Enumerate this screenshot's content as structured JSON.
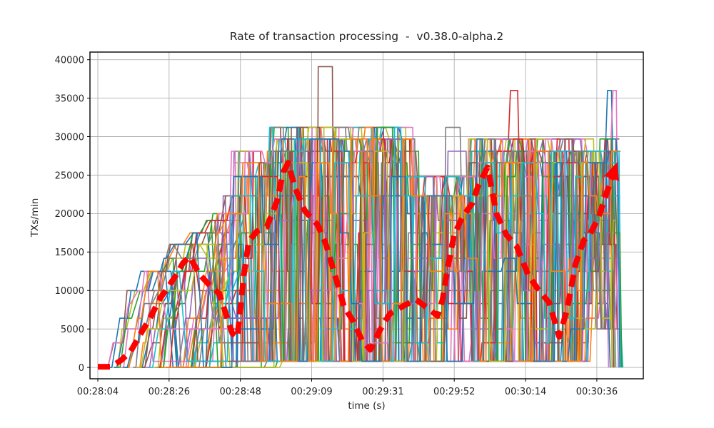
{
  "title": "Rate of transaction processing  -  v0.38.0-alpha.2",
  "chart_data": {
    "type": "line",
    "title": "Rate of transaction processing  -  v0.38.0-alpha.2",
    "xlabel": "time (s)",
    "ylabel": "TXs/min",
    "grid": true,
    "legend": "none",
    "x_axis": {
      "tick_labels": [
        "00:28:04",
        "00:28:26",
        "00:28:48",
        "00:29:09",
        "00:29:31",
        "00:29:52",
        "00:30:14",
        "00:30:36"
      ],
      "tick_seconds": [
        0,
        21.714,
        43.429,
        65.143,
        86.857,
        108.571,
        130.286,
        152
      ],
      "range_seconds": [
        -2.39,
        166.15
      ]
    },
    "y_axis": {
      "tick_labels": [
        "0",
        "5000",
        "10000",
        "15000",
        "20000",
        "25000",
        "30000",
        "35000",
        "40000"
      ],
      "tick_values": [
        0,
        5000,
        10000,
        15000,
        20000,
        25000,
        30000,
        35000,
        40000
      ],
      "range": [
        -1470,
        40990
      ]
    },
    "style": {
      "grid_color": "#b0b0b0",
      "spine_color": "#000000",
      "text_color": "#262626",
      "average_color": "#ff0000"
    },
    "average_series": {
      "name": "trend-arrow",
      "color": "#ff0000",
      "style": "thick-dashed-with-arrowhead",
      "points_t_v": [
        [
          0,
          100
        ],
        [
          4,
          100
        ],
        [
          7,
          900
        ],
        [
          10,
          2100
        ],
        [
          13.5,
          4700
        ],
        [
          16,
          6500
        ],
        [
          19,
          9000
        ],
        [
          21.5,
          10500
        ],
        [
          24,
          12100
        ],
        [
          26,
          13600
        ],
        [
          28,
          14400
        ],
        [
          31,
          12100
        ],
        [
          34,
          10700
        ],
        [
          37,
          9600
        ],
        [
          39,
          7000
        ],
        [
          41,
          4400
        ],
        [
          42.5,
          3900
        ],
        [
          44.5,
          12000
        ],
        [
          46,
          16400
        ],
        [
          48.5,
          17700
        ],
        [
          51.5,
          18300
        ],
        [
          54.5,
          21500
        ],
        [
          56.5,
          25400
        ],
        [
          58,
          26600
        ],
        [
          60,
          23400
        ],
        [
          63,
          20400
        ],
        [
          67,
          18500
        ],
        [
          69.5,
          16000
        ],
        [
          72.5,
          11600
        ],
        [
          75,
          7900
        ],
        [
          77.5,
          6200
        ],
        [
          80.5,
          3500
        ],
        [
          83,
          2300
        ],
        [
          86,
          4900
        ],
        [
          89,
          7000
        ],
        [
          93.5,
          8100
        ],
        [
          97,
          8800
        ],
        [
          100.5,
          7700
        ],
        [
          103.5,
          6700
        ],
        [
          105,
          8800
        ],
        [
          106.5,
          12800
        ],
        [
          108.5,
          17200
        ],
        [
          111,
          19500
        ],
        [
          114,
          21300
        ],
        [
          116,
          23800
        ],
        [
          118.7,
          26000
        ],
        [
          121.5,
          19900
        ],
        [
          124.5,
          17200
        ],
        [
          127.5,
          15800
        ],
        [
          131,
          12100
        ],
        [
          134,
          10200
        ],
        [
          137.5,
          8400
        ],
        [
          140.5,
          4000
        ],
        [
          143,
          7600
        ],
        [
          145.5,
          13400
        ],
        [
          148,
          16500
        ],
        [
          150,
          17400
        ],
        [
          152.5,
          19500
        ],
        [
          155,
          22700
        ],
        [
          157.5,
          25800
        ]
      ]
    },
    "background_series": {
      "count": 42,
      "seed": 11,
      "colors": [
        "#1f77b4",
        "#ff7f0e",
        "#2ca02c",
        "#d62728",
        "#9467bd",
        "#8c564b",
        "#e377c2",
        "#7f7f7f",
        "#bcbd22",
        "#17becf"
      ],
      "levels": [
        0,
        800,
        3200,
        5000,
        6400,
        8300,
        10000,
        12500,
        14200,
        16000,
        17500,
        19100,
        20000,
        22300,
        24800,
        26600,
        28100,
        29700,
        31200
      ],
      "start_window_s": [
        1.5,
        34
      ],
      "end_window_s": [
        154.5,
        159.5
      ],
      "phases": [
        {
          "t_end": 40,
          "hi_base": 6500,
          "hi_slope": 420,
          "hi_cap": 22300,
          "lo": 0,
          "drop_p": 0.22,
          "hold_scale": 1.6
        },
        {
          "t_end": 50,
          "hi_base": 28000,
          "hi_slope": 0,
          "hi_cap": 29700,
          "lo": 800,
          "drop_p": 0.28,
          "hold_scale": 1.0
        },
        {
          "t_end": 93,
          "hi_base": 31200,
          "hi_slope": 0,
          "hi_cap": 31200,
          "lo": 800,
          "drop_p": 0.3,
          "hold_scale": 1.0
        },
        {
          "t_end": 112,
          "hi_base": 24800,
          "hi_slope": 0,
          "hi_cap": 24800,
          "lo": 800,
          "drop_p": 0.16,
          "hold_scale": 1.3
        },
        {
          "t_end": 146,
          "hi_base": 29700,
          "hi_slope": 0,
          "hi_cap": 29700,
          "lo": 800,
          "drop_p": 0.28,
          "hold_scale": 1.0
        },
        {
          "t_end": 161,
          "hi_base": 29700,
          "hi_slope": 0,
          "hi_cap": 29700,
          "lo": 5000,
          "drop_p": 0.1,
          "hold_scale": 0.9
        }
      ],
      "spikes": [
        {
          "series": 5,
          "t": 65.5,
          "v": 39100,
          "hold": 4.3
        },
        {
          "series": 9,
          "t": 59,
          "v": 31200,
          "hold": 22
        },
        {
          "series": 3,
          "t": 84.8,
          "v": 31200,
          "hold": 3.5
        },
        {
          "series": 7,
          "t": 106,
          "v": 31200,
          "hold": 4.4
        },
        {
          "series": 24,
          "t": 104.5,
          "v": 28100,
          "hold": 5.5
        },
        {
          "series": 14,
          "t": 39.5,
          "v": 22300,
          "hold": 0.6
        },
        {
          "series": 3,
          "t": 125.7,
          "v": 36000,
          "hold": 2.2
        },
        {
          "series": 10,
          "t": 155.8,
          "v": 36000,
          "hold": 1.2
        },
        {
          "series": 16,
          "t": 156.2,
          "v": 36000,
          "hold": 1.0
        }
      ]
    }
  }
}
